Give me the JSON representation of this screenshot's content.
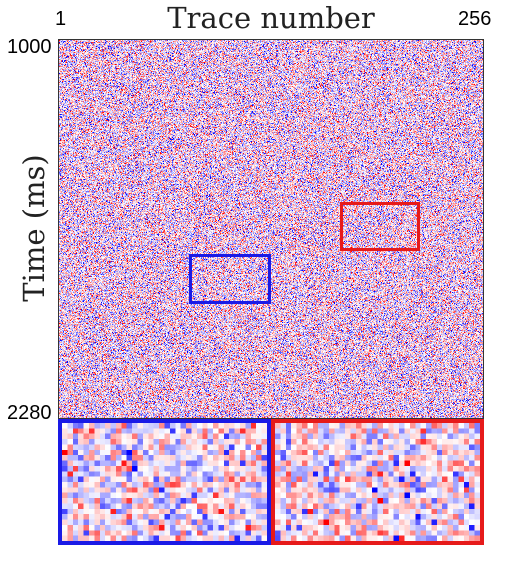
{
  "chart_data": {
    "type": "heatmap",
    "title": "Trace number",
    "ylabel": "Time (ms)",
    "x_ticks": [
      "1",
      "256"
    ],
    "y_ticks": [
      "1000",
      "2280"
    ],
    "x_range": [
      1,
      256
    ],
    "y_range_ms": [
      1000,
      2280
    ],
    "colormap": {
      "negative": "#0000ff",
      "zero": "#ffffff",
      "positive": "#ff0000"
    },
    "zoom_windows": [
      {
        "id": "blue-window",
        "color": "#1a1ae6",
        "trace_range": [
          79,
          128
        ],
        "time_range_ms": [
          1720,
          1890
        ]
      },
      {
        "id": "red-window",
        "color": "#e61a1a",
        "trace_range": [
          169,
          217
        ],
        "time_range_ms": [
          1545,
          1710
        ]
      }
    ]
  }
}
